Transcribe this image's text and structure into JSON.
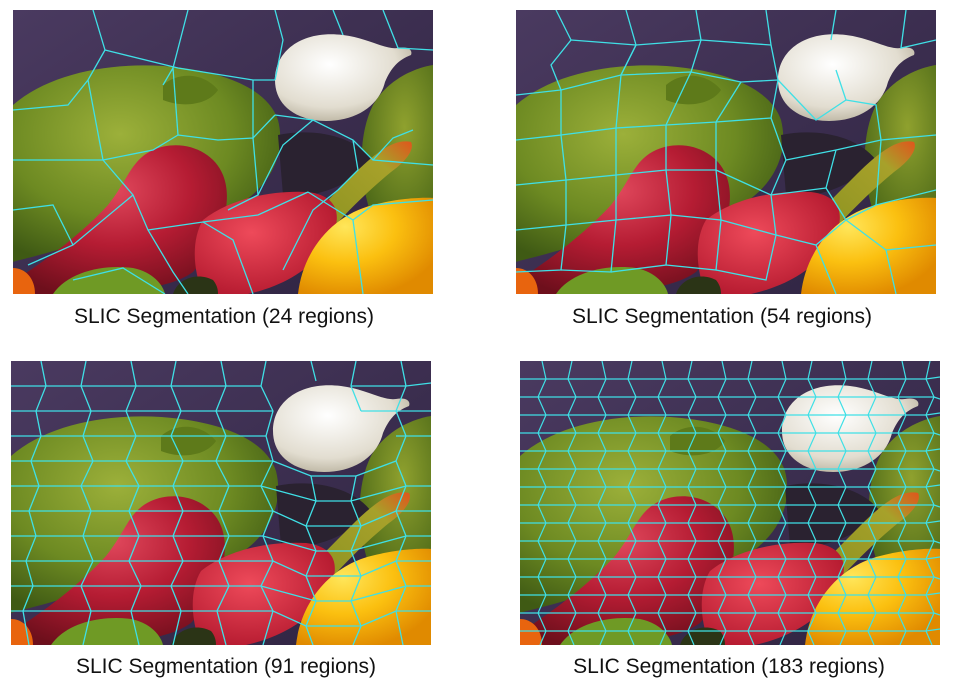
{
  "panels": [
    {
      "caption": "SLIC Segmentation (24 regions)",
      "regions": 24
    },
    {
      "caption": "SLIC Segmentation (54 regions)",
      "regions": 54
    },
    {
      "caption": "SLIC Segmentation (91 regions)",
      "regions": 91
    },
    {
      "caption": "SLIC Segmentation (183 regions)",
      "regions": 183
    }
  ],
  "colors": {
    "boundary": "#3fe0e6",
    "background_cloth": "#3d2f52",
    "green_pepper": "#6f8f22",
    "red_pepper": "#b81f35",
    "yellow_pepper": "#f6b40a",
    "onion": "#e9e6dc"
  }
}
